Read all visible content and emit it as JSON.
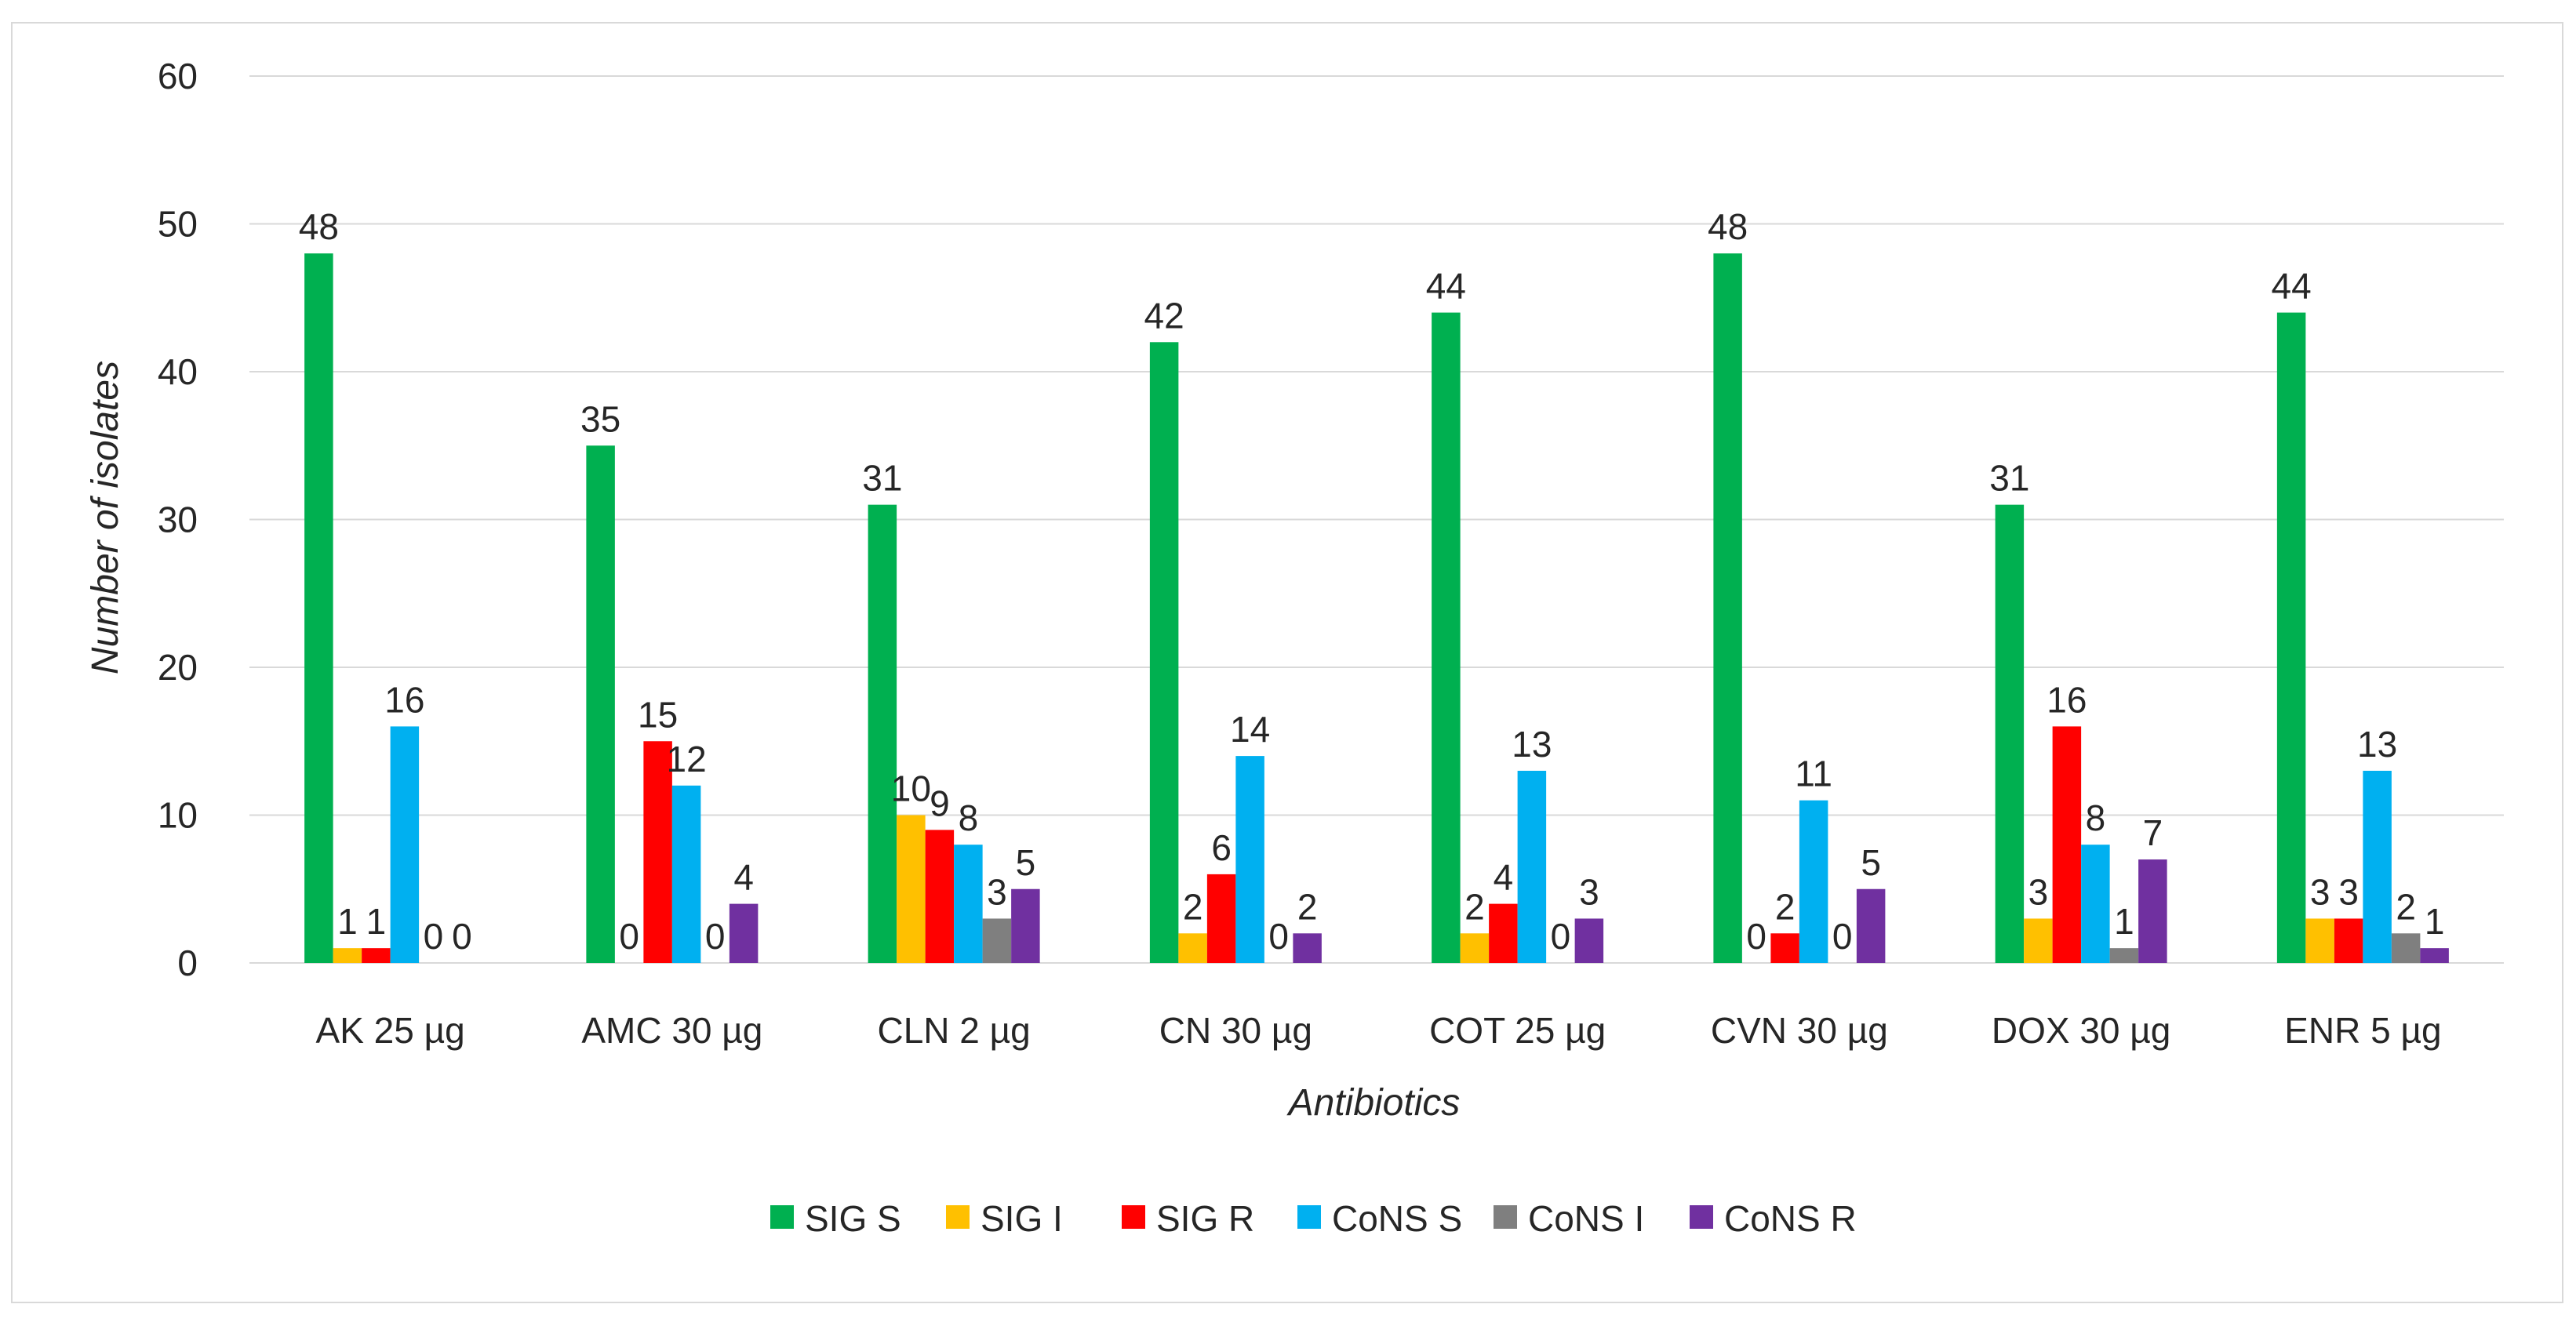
{
  "chart_data": {
    "type": "bar",
    "title": "",
    "xlabel": "Antibiotics",
    "ylabel": "Number of isolates",
    "ylim": [
      0,
      60
    ],
    "yticks": [
      "0",
      "10",
      "20",
      "30",
      "40",
      "50",
      "60"
    ],
    "legend_position": "bottom",
    "categories": [
      "AK 25  µg",
      "AMC 30 µg",
      "CLN 2 µg",
      "CN 30 µg",
      "COT 25 µg",
      "CVN 30 µg",
      "DOX 30 µg",
      "ENR 5 µg"
    ],
    "series": [
      {
        "name": "SIG S",
        "color": "#00b050",
        "values": [
          48,
          35,
          31,
          42,
          44,
          48,
          31,
          44
        ]
      },
      {
        "name": "SIG I",
        "color": "#ffc000",
        "values": [
          1,
          0,
          10,
          2,
          2,
          0,
          3,
          3
        ]
      },
      {
        "name": "SIG R",
        "color": "#ff0000",
        "values": [
          1,
          15,
          9,
          6,
          4,
          2,
          16,
          3
        ]
      },
      {
        "name": "CoNS S",
        "color": "#00b0f0",
        "values": [
          16,
          12,
          8,
          14,
          13,
          11,
          8,
          13
        ]
      },
      {
        "name": "CoNS I",
        "color": "#7f7f7f",
        "values": [
          0,
          0,
          3,
          0,
          0,
          0,
          1,
          2
        ]
      },
      {
        "name": "CoNS R",
        "color": "#7030a0",
        "values": [
          0,
          4,
          5,
          2,
          3,
          5,
          7,
          1
        ]
      }
    ],
    "visible_data_labels": [
      [
        true,
        true,
        true,
        true,
        true,
        true,
        true,
        true
      ],
      [
        true,
        true,
        true,
        true,
        true,
        true,
        true,
        true
      ],
      [
        true,
        true,
        true,
        true,
        true,
        true,
        true,
        true
      ],
      [
        true,
        true,
        true,
        true,
        true,
        true,
        true,
        true
      ],
      [
        true,
        true,
        true,
        true,
        true,
        true,
        true,
        true
      ],
      [
        true,
        true,
        true,
        true,
        true,
        true,
        true,
        true
      ]
    ]
  }
}
